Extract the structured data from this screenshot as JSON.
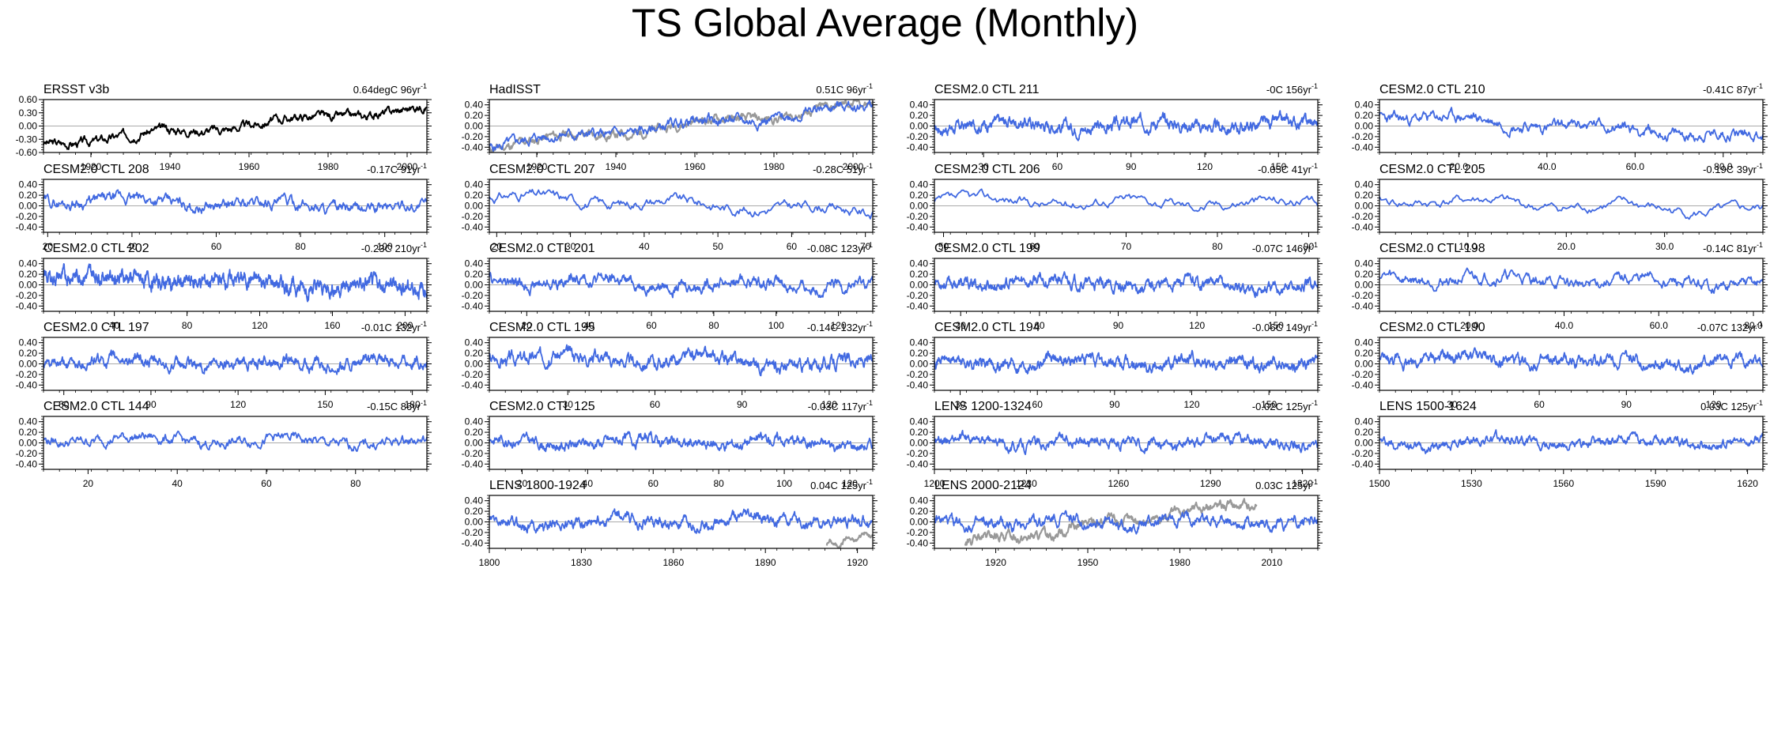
{
  "title": "TS Global Average (Monthly)",
  "colors": {
    "model": "#4169e1",
    "obs": "#000000",
    "overlay": "#999999",
    "zero": "#aaaaaa",
    "frame": "#000000"
  },
  "chart_data": [
    {
      "type": "line",
      "title": "ERSST v3b",
      "stats": "0.64degC 96yr",
      "stats_sup": "-1",
      "xlim": [
        1908,
        2005
      ],
      "xticks": [
        "1920",
        "1940",
        "1960",
        "1980",
        "2000"
      ],
      "ylim": [
        -0.6,
        0.6
      ],
      "yticks": [
        "-0.60",
        "-0.30",
        "0.00",
        "0.30",
        "0.60"
      ],
      "series": [
        {
          "role": "obs",
          "trend": [
            -0.4,
            0.42
          ],
          "noise": 0.09,
          "seed": 3
        }
      ]
    },
    {
      "type": "line",
      "title": "HadISST",
      "stats": "0.51C 96yr",
      "stats_sup": "-1",
      "xlim": [
        1908,
        2005
      ],
      "xticks": [
        "1920",
        "1940",
        "1960",
        "1980",
        "2000"
      ],
      "ylim": [
        -0.5,
        0.5
      ],
      "yticks": [
        "-0.40",
        "-0.20",
        "0.00",
        "0.20",
        "0.40"
      ],
      "series": [
        {
          "role": "overlay",
          "trend": [
            -0.38,
            0.4
          ],
          "noise": 0.08,
          "seed": 11
        },
        {
          "role": "model",
          "trend": [
            -0.36,
            0.38
          ],
          "noise": 0.09,
          "seed": 5
        }
      ]
    },
    {
      "type": "line",
      "title": "CESM2.0 CTL 211",
      "stats": "-0C 156yr",
      "stats_sup": "-1",
      "xlim": [
        10,
        166
      ],
      "xticks": [
        "30",
        "60",
        "90",
        "120",
        "150"
      ],
      "ylim": [
        -0.5,
        0.5
      ],
      "yticks": [
        "-0.40",
        "-0.20",
        "0.00",
        "0.20",
        "0.40"
      ],
      "series": [
        {
          "role": "model",
          "trend": [
            0.02,
            0.02
          ],
          "noise": 0.1,
          "seed": 17
        }
      ]
    },
    {
      "type": "line",
      "title": "CESM2.0 CTL 210",
      "stats": "-0.41C 87yr",
      "stats_sup": "-1",
      "xlim": [
        2,
        89
      ],
      "xticks": [
        "20.0",
        "40.0",
        "60.0",
        "80.0"
      ],
      "ylim": [
        -0.5,
        0.5
      ],
      "yticks": [
        "-0.40",
        "-0.20",
        "0.00",
        "0.20",
        "0.40"
      ],
      "series": [
        {
          "role": "model",
          "trend": [
            0.2,
            -0.2
          ],
          "noise": 0.1,
          "seed": 23
        }
      ]
    },
    {
      "type": "line",
      "title": "CESM2.0 CTL 208",
      "stats": "-0.17C 91yr",
      "stats_sup": "-1",
      "xlim": [
        19,
        110
      ],
      "xticks": [
        "20",
        "40",
        "60",
        "80",
        "100"
      ],
      "ylim": [
        -0.5,
        0.5
      ],
      "yticks": [
        "-0.40",
        "-0.20",
        "0.00",
        "0.20",
        "0.40"
      ],
      "series": [
        {
          "role": "model",
          "trend": [
            0.12,
            -0.05
          ],
          "noise": 0.1,
          "seed": 29
        }
      ]
    },
    {
      "type": "line",
      "title": "CESM2.0 CTL 207",
      "stats": "-0.28C 51yr",
      "stats_sup": "-1",
      "xlim": [
        19,
        71
      ],
      "xticks": [
        "20",
        "30",
        "40",
        "50",
        "60",
        "70"
      ],
      "ylim": [
        -0.5,
        0.5
      ],
      "yticks": [
        "-0.40",
        "-0.20",
        "0.00",
        "0.20",
        "0.40"
      ],
      "series": [
        {
          "role": "model",
          "trend": [
            0.18,
            -0.1
          ],
          "noise": 0.09,
          "seed": 31
        }
      ]
    },
    {
      "type": "line",
      "title": "CESM2.0 CTL 206",
      "stats": "-0.05C 41yr",
      "stats_sup": "-1",
      "xlim": [
        49,
        91
      ],
      "xticks": [
        "50",
        "60",
        "70",
        "80",
        "90"
      ],
      "ylim": [
        -0.5,
        0.5
      ],
      "yticks": [
        "-0.40",
        "-0.20",
        "0.00",
        "0.20",
        "0.40"
      ],
      "series": [
        {
          "role": "model",
          "trend": [
            0.1,
            0.05
          ],
          "noise": 0.09,
          "seed": 37
        }
      ]
    },
    {
      "type": "line",
      "title": "CESM2.0 CTL 205",
      "stats": "-0.19C 39yr",
      "stats_sup": "-1",
      "xlim": [
        1,
        40
      ],
      "xticks": [
        "10.0",
        "20.0",
        "30.0"
      ],
      "ylim": [
        -0.5,
        0.5
      ],
      "yticks": [
        "-0.40",
        "-0.20",
        "0.00",
        "0.20",
        "0.40"
      ],
      "series": [
        {
          "role": "model",
          "trend": [
            0.12,
            -0.12
          ],
          "noise": 0.09,
          "seed": 41
        }
      ]
    },
    {
      "type": "line",
      "title": "CESM2.0 CTL 202",
      "stats": "-0.23C 210yr",
      "stats_sup": "-1",
      "xlim": [
        1,
        212
      ],
      "xticks": [
        "40",
        "80",
        "120",
        "160",
        "200"
      ],
      "ylim": [
        -0.5,
        0.5
      ],
      "yticks": [
        "-0.40",
        "-0.20",
        "0.00",
        "0.20",
        "0.40"
      ],
      "series": [
        {
          "role": "model",
          "trend": [
            0.18,
            -0.08
          ],
          "noise": 0.12,
          "seed": 43
        }
      ]
    },
    {
      "type": "line",
      "title": "CESM2.0 CTL 201",
      "stats": "-0.08C 123yr",
      "stats_sup": "-1",
      "xlim": [
        8,
        131
      ],
      "xticks": [
        "20",
        "40",
        "60",
        "80",
        "100",
        "120"
      ],
      "ylim": [
        -0.5,
        0.5
      ],
      "yticks": [
        "-0.40",
        "-0.20",
        "0.00",
        "0.20",
        "0.40"
      ],
      "series": [
        {
          "role": "model",
          "trend": [
            0.08,
            -0.02
          ],
          "noise": 0.1,
          "seed": 47
        }
      ]
    },
    {
      "type": "line",
      "title": "CESM2.0 CTL 199",
      "stats": "-0.07C 146yr",
      "stats_sup": "-1",
      "xlim": [
        20,
        166
      ],
      "xticks": [
        "30",
        "60",
        "90",
        "120",
        "150"
      ],
      "ylim": [
        -0.5,
        0.5
      ],
      "yticks": [
        "-0.40",
        "-0.20",
        "0.00",
        "0.20",
        "0.40"
      ],
      "series": [
        {
          "role": "model",
          "trend": [
            0.06,
            -0.03
          ],
          "noise": 0.1,
          "seed": 53
        }
      ]
    },
    {
      "type": "line",
      "title": "CESM2.0 CTL 198",
      "stats": "-0.14C 81yr",
      "stats_sup": "-1",
      "xlim": [
        1,
        82
      ],
      "xticks": [
        "20.0",
        "40.0",
        "60.0",
        "80.0"
      ],
      "ylim": [
        -0.5,
        0.5
      ],
      "yticks": [
        "-0.40",
        "-0.20",
        "0.00",
        "0.20",
        "0.40"
      ],
      "series": [
        {
          "role": "model",
          "trend": [
            0.15,
            0.0
          ],
          "noise": 0.1,
          "seed": 59
        }
      ]
    },
    {
      "type": "line",
      "title": "CESM2.0 CTL 197",
      "stats": "-0.01C 132yr",
      "stats_sup": "-1",
      "xlim": [
        53,
        185
      ],
      "xticks": [
        "60",
        "90",
        "120",
        "150",
        "180"
      ],
      "ylim": [
        -0.5,
        0.5
      ],
      "yticks": [
        "-0.40",
        "-0.20",
        "0.00",
        "0.20",
        "0.40"
      ],
      "series": [
        {
          "role": "model",
          "trend": [
            0.02,
            0.01
          ],
          "noise": 0.1,
          "seed": 61
        }
      ]
    },
    {
      "type": "line",
      "title": "CESM2.0 CTL 195",
      "stats": "-0.14C 132yr",
      "stats_sup": "-1",
      "xlim": [
        3,
        135
      ],
      "xticks": [
        "30",
        "60",
        "90",
        "120"
      ],
      "ylim": [
        -0.5,
        0.5
      ],
      "yticks": [
        "-0.40",
        "-0.20",
        "0.00",
        "0.20",
        "0.40"
      ],
      "series": [
        {
          "role": "model",
          "trend": [
            0.16,
            -0.02
          ],
          "noise": 0.11,
          "seed": 67
        }
      ]
    },
    {
      "type": "line",
      "title": "CESM2.0 CTL 194",
      "stats": "-0.06C 149yr",
      "stats_sup": "-1",
      "xlim": [
        20,
        169
      ],
      "xticks": [
        "30",
        "60",
        "90",
        "120",
        "150"
      ],
      "ylim": [
        -0.5,
        0.5
      ],
      "yticks": [
        "-0.40",
        "-0.20",
        "0.00",
        "0.20",
        "0.40"
      ],
      "series": [
        {
          "role": "model",
          "trend": [
            0.05,
            0.0
          ],
          "noise": 0.1,
          "seed": 71
        }
      ]
    },
    {
      "type": "line",
      "title": "CESM2.0 CTL 190",
      "stats": "-0.07C 132yr",
      "stats_sup": "-1",
      "xlim": [
        5,
        137
      ],
      "xticks": [
        "30",
        "60",
        "90",
        "120"
      ],
      "ylim": [
        -0.5,
        0.5
      ],
      "yticks": [
        "-0.40",
        "-0.20",
        "0.00",
        "0.20",
        "0.40"
      ],
      "series": [
        {
          "role": "model",
          "trend": [
            0.1,
            0.0
          ],
          "noise": 0.1,
          "seed": 73
        }
      ]
    },
    {
      "type": "line",
      "title": "CESM2.0 CTL 144",
      "stats": "-0.15C 86yr",
      "stats_sup": "-1",
      "xlim": [
        10,
        96
      ],
      "xticks": [
        "20",
        "40",
        "60",
        "80"
      ],
      "ylim": [
        -0.5,
        0.5
      ],
      "yticks": [
        "-0.40",
        "-0.20",
        "0.00",
        "0.20",
        "0.40"
      ],
      "series": [
        {
          "role": "model",
          "trend": [
            0.08,
            0.0
          ],
          "noise": 0.09,
          "seed": 79
        }
      ]
    },
    {
      "type": "line",
      "title": "CESM2.0 CTL 125",
      "stats": "-0.03C 117yr",
      "stats_sup": "-1",
      "xlim": [
        10,
        127
      ],
      "xticks": [
        "20",
        "40",
        "60",
        "80",
        "100",
        "120"
      ],
      "ylim": [
        -0.5,
        0.5
      ],
      "yticks": [
        "-0.40",
        "-0.20",
        "0.00",
        "0.20",
        "0.40"
      ],
      "series": [
        {
          "role": "model",
          "trend": [
            0.02,
            0.0
          ],
          "noise": 0.1,
          "seed": 83
        }
      ]
    },
    {
      "type": "line",
      "title": "LENS 1200-1324",
      "stats": "-0.02C 125yr",
      "stats_sup": "-1",
      "xlim": [
        1200,
        1325
      ],
      "xticks": [
        "1200",
        "1230",
        "1260",
        "1290",
        "1320"
      ],
      "ylim": [
        -0.5,
        0.5
      ],
      "yticks": [
        "-0.40",
        "-0.20",
        "0.00",
        "0.20",
        "0.40"
      ],
      "series": [
        {
          "role": "model",
          "trend": [
            0.02,
            0.0
          ],
          "noise": 0.09,
          "seed": 89
        }
      ]
    },
    {
      "type": "line",
      "title": "LENS 1500-1624",
      "stats": "0.03C 125yr",
      "stats_sup": "-1",
      "xlim": [
        1500,
        1625
      ],
      "xticks": [
        "1500",
        "1530",
        "1560",
        "1590",
        "1620"
      ],
      "ylim": [
        -0.5,
        0.5
      ],
      "yticks": [
        "-0.40",
        "-0.20",
        "0.00",
        "0.20",
        "0.40"
      ],
      "series": [
        {
          "role": "model",
          "trend": [
            0.0,
            0.02
          ],
          "noise": 0.08,
          "seed": 97
        }
      ]
    },
    {
      "type": "line",
      "title": "LENS 1800-1924",
      "stats": "0.04C 125yr",
      "stats_sup": "-1",
      "xlim": [
        1800,
        1925
      ],
      "xticks": [
        "1800",
        "1830",
        "1860",
        "1890",
        "1920"
      ],
      "ylim": [
        -0.5,
        0.5
      ],
      "yticks": [
        "-0.40",
        "-0.20",
        "0.00",
        "0.20",
        "0.40"
      ],
      "series": [
        {
          "role": "overlay",
          "x_range": [
            1910,
            1925
          ],
          "trend": [
            -0.45,
            -0.22
          ],
          "noise": 0.05,
          "seed": 101
        },
        {
          "role": "model",
          "trend": [
            -0.02,
            0.03
          ],
          "noise": 0.1,
          "seed": 103
        }
      ]
    },
    {
      "type": "line",
      "title": "LENS 2000-2124",
      "stats": "0.03C 125yr",
      "stats_sup": "-1",
      "xlim": [
        1900,
        2025
      ],
      "xticks": [
        "1920",
        "1950",
        "1980",
        "2010"
      ],
      "ylim": [
        -0.5,
        0.5
      ],
      "yticks": [
        "-0.40",
        "-0.20",
        "0.00",
        "0.20",
        "0.40"
      ],
      "series": [
        {
          "role": "overlay",
          "x_range": [
            1910,
            2005
          ],
          "trend": [
            -0.42,
            0.38
          ],
          "noise": 0.08,
          "seed": 107
        },
        {
          "role": "model",
          "trend": [
            -0.02,
            0.02
          ],
          "noise": 0.1,
          "seed": 109
        }
      ]
    }
  ]
}
